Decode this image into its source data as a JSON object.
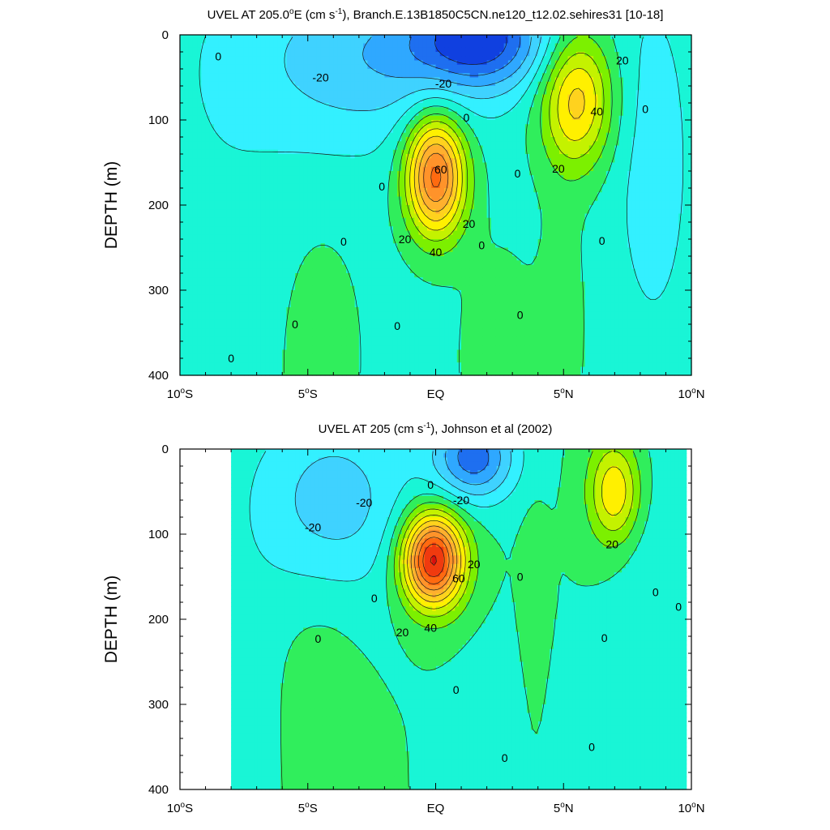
{
  "chart_data": [
    {
      "type": "contour",
      "title": {
        "pre": "UVEL AT 205.0",
        "deg": "o",
        "mid": "E (cm s",
        "sup": "-1",
        "post": "), Branch.E.13B1850C5CN.ne120_t12.02.sehires31 [10-18]"
      },
      "ylabel": "DEPTH (m)",
      "xlim": [
        -10,
        10
      ],
      "ylim": [
        0,
        400
      ],
      "x_ticks": [
        {
          "value": -10,
          "num": "10",
          "deg": "o",
          "suf": "S"
        },
        {
          "value": -5,
          "num": "5",
          "deg": "o",
          "suf": "S"
        },
        {
          "value": 0,
          "num": "EQ",
          "deg": "",
          "suf": ""
        },
        {
          "value": 5,
          "num": "5",
          "deg": "o",
          "suf": "N"
        },
        {
          "value": 10,
          "num": "10",
          "deg": "o",
          "suf": "N"
        }
      ],
      "y_ticks": [
        "0",
        "100",
        "200",
        "300",
        "400"
      ],
      "y_tick_values": [
        0,
        100,
        200,
        300,
        400
      ],
      "contour_interval": 10,
      "data_xlim": [
        -10,
        10
      ],
      "features": [
        {
          "x": 0.0,
          "depth": 165,
          "amp": 78,
          "sx": 1.15,
          "sy": 70
        },
        {
          "x": 5.5,
          "depth": 75,
          "amp": 48,
          "sx": 1.4,
          "sy": 80
        },
        {
          "x": 1.8,
          "depth": 5,
          "amp": -42,
          "sx": 2.6,
          "sy": 55
        },
        {
          "x": -3.5,
          "depth": 30,
          "amp": -20,
          "sx": 4.5,
          "sy": 110
        },
        {
          "x": 0.5,
          "depth": 20,
          "amp": -12,
          "sx": 4.0,
          "sy": 70
        },
        {
          "x": 8.5,
          "depth": 150,
          "amp": -12,
          "sx": 1.6,
          "sy": 220
        },
        {
          "x": -8.5,
          "depth": 150,
          "amp": -4,
          "sx": 2.5,
          "sy": 260
        },
        {
          "x": -4.5,
          "depth": 380,
          "amp": 9,
          "sx": 1.5,
          "sy": 140
        },
        {
          "x": 2.5,
          "depth": 380,
          "amp": 8,
          "sx": 1.6,
          "sy": 130
        },
        {
          "x": 5.0,
          "depth": 330,
          "amp": 7,
          "sx": 0.9,
          "sy": 160
        }
      ],
      "background": -3,
      "contour_labels": [
        {
          "text": "0",
          "x": -8.5,
          "y": 25
        },
        {
          "text": "-20",
          "x": -4.5,
          "y": 50
        },
        {
          "text": "-20",
          "x": 0.3,
          "y": 57
        },
        {
          "text": "0",
          "x": 1.2,
          "y": 97
        },
        {
          "text": "60",
          "x": 0.2,
          "y": 158
        },
        {
          "text": "0",
          "x": -2.1,
          "y": 178
        },
        {
          "text": "0",
          "x": 3.2,
          "y": 163
        },
        {
          "text": "20",
          "x": 1.3,
          "y": 222
        },
        {
          "text": "20",
          "x": -1.2,
          "y": 240
        },
        {
          "text": "40",
          "x": 0.0,
          "y": 255
        },
        {
          "text": "0",
          "x": -3.6,
          "y": 243
        },
        {
          "text": "0",
          "x": 1.8,
          "y": 247
        },
        {
          "text": "20",
          "x": 7.3,
          "y": 30
        },
        {
          "text": "40",
          "x": 6.3,
          "y": 90
        },
        {
          "text": "20",
          "x": 4.8,
          "y": 157
        },
        {
          "text": "0",
          "x": 8.2,
          "y": 87
        },
        {
          "text": "0",
          "x": 6.5,
          "y": 242
        },
        {
          "text": "0",
          "x": 3.3,
          "y": 329
        },
        {
          "text": "0",
          "x": -1.5,
          "y": 342
        },
        {
          "text": "0",
          "x": -5.5,
          "y": 340
        },
        {
          "text": "0",
          "x": -8.0,
          "y": 380
        }
      ]
    },
    {
      "type": "contour",
      "title": {
        "pre": "UVEL AT 205 (cm s",
        "deg": "",
        "mid": "",
        "sup": "-1",
        "post": "), Johnson et al (2002)"
      },
      "ylabel": "DEPTH (m)",
      "xlim": [
        -10,
        10
      ],
      "ylim": [
        0,
        400
      ],
      "x_ticks": [
        {
          "value": -10,
          "num": "10",
          "deg": "o",
          "suf": "S"
        },
        {
          "value": -5,
          "num": "5",
          "deg": "o",
          "suf": "S"
        },
        {
          "value": 0,
          "num": "EQ",
          "deg": "",
          "suf": ""
        },
        {
          "value": 5,
          "num": "5",
          "deg": "o",
          "suf": "N"
        },
        {
          "value": 10,
          "num": "10",
          "deg": "o",
          "suf": "N"
        }
      ],
      "y_ticks": [
        "0",
        "100",
        "200",
        "300",
        "400"
      ],
      "y_tick_values": [
        0,
        100,
        200,
        300,
        400
      ],
      "contour_interval": 10,
      "data_xlim": [
        -8,
        9.8
      ],
      "features": [
        {
          "x": -0.1,
          "depth": 130,
          "amp": 95,
          "sx": 1.2,
          "sy": 55
        },
        {
          "x": 7.0,
          "depth": 50,
          "amp": 40,
          "sx": 1.0,
          "sy": 60
        },
        {
          "x": 1.5,
          "depth": 10,
          "amp": -45,
          "sx": 1.6,
          "sy": 50
        },
        {
          "x": -4.0,
          "depth": 60,
          "amp": -25,
          "sx": 3.2,
          "sy": 110
        },
        {
          "x": 2.8,
          "depth": 340,
          "amp": -9,
          "sx": 1.6,
          "sy": 100
        },
        {
          "x": -7.5,
          "depth": 300,
          "amp": -5,
          "sx": 1.5,
          "sy": 200
        },
        {
          "x": 3.8,
          "depth": 250,
          "amp": 8,
          "sx": 0.5,
          "sy": 150
        },
        {
          "x": -4.5,
          "depth": 300,
          "amp": 6,
          "sx": 1.5,
          "sy": 150
        },
        {
          "x": 8.5,
          "depth": 200,
          "amp": -8,
          "sx": 1.5,
          "sy": 220
        }
      ],
      "background": 0,
      "contour_labels": [
        {
          "text": "0",
          "x": -0.2,
          "y": 42
        },
        {
          "text": "-20",
          "x": 1.0,
          "y": 60
        },
        {
          "text": "-20",
          "x": -2.8,
          "y": 63
        },
        {
          "text": "-20",
          "x": -4.8,
          "y": 92
        },
        {
          "text": "20",
          "x": 1.5,
          "y": 135
        },
        {
          "text": "60",
          "x": 0.9,
          "y": 152
        },
        {
          "text": "40",
          "x": -0.2,
          "y": 210
        },
        {
          "text": "20",
          "x": -1.3,
          "y": 215
        },
        {
          "text": "0",
          "x": -2.4,
          "y": 175
        },
        {
          "text": "0",
          "x": -4.6,
          "y": 223
        },
        {
          "text": "0",
          "x": 3.3,
          "y": 150
        },
        {
          "text": "20",
          "x": 6.9,
          "y": 112
        },
        {
          "text": "0",
          "x": 8.6,
          "y": 168
        },
        {
          "text": "0",
          "x": 9.5,
          "y": 185
        },
        {
          "text": "0",
          "x": 6.6,
          "y": 222
        },
        {
          "text": "0",
          "x": 0.8,
          "y": 283
        },
        {
          "text": "0",
          "x": 2.7,
          "y": 363
        },
        {
          "text": "0",
          "x": 6.1,
          "y": 350
        }
      ]
    }
  ]
}
